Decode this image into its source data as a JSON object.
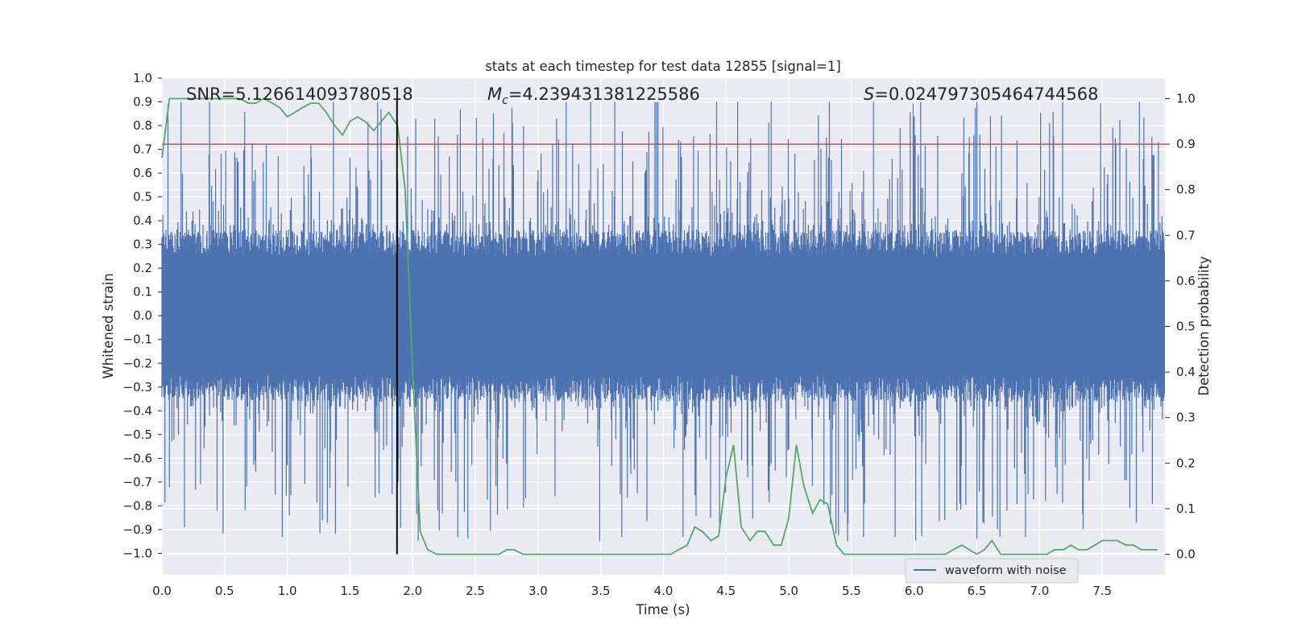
{
  "chart_data": {
    "type": "line",
    "title": "stats at each timestep for test data 12855 [signal=1]",
    "xlabel": "Time (s)",
    "ylabel": "Whitened strain",
    "y2label": "Detection probability",
    "xlim": [
      0.0,
      8.0
    ],
    "ylim": [
      -1.09,
      1.0
    ],
    "y2lim": [
      -0.045,
      1.045
    ],
    "xticks": [
      "0.0",
      "0.5",
      "1.0",
      "1.5",
      "2.0",
      "2.5",
      "3.0",
      "3.5",
      "4.0",
      "4.5",
      "5.0",
      "5.5",
      "6.0",
      "6.5",
      "7.0",
      "7.5"
    ],
    "yticks": [
      "1.0",
      "0.9",
      "0.8",
      "0.7",
      "0.6",
      "0.5",
      "0.4",
      "0.3",
      "0.2",
      "0.1",
      "0.0",
      "−0.1",
      "−0.2",
      "−0.3",
      "−0.4",
      "−0.5",
      "−0.6",
      "−0.7",
      "−0.8",
      "−0.9",
      "−1.0"
    ],
    "y2ticks": [
      "1.0",
      "0.9",
      "0.8",
      "0.7",
      "0.6",
      "0.5",
      "0.4",
      "0.3",
      "0.2",
      "0.1",
      "0.0"
    ],
    "grid": true,
    "annotations": {
      "snr": "SNR=5.126614093780518",
      "mc_symbol": "M",
      "mc_sub": "c",
      "mc_value": "=4.239431381225586",
      "s_symbol": "S",
      "s_value": "=0.024797305464744568"
    },
    "legend": {
      "placement": "lower-right",
      "entries": [
        "waveform with noise"
      ]
    },
    "merger_time": 1.875,
    "threshold_probability": 0.9,
    "series": [
      {
        "name": "waveform with noise",
        "axis": "left",
        "color": "#4c72b0",
        "description_values": {
          "typical_amplitude": 0.33,
          "peak_amplitude": 0.9,
          "duration_s": 8.0
        }
      },
      {
        "name": "",
        "axis": "right",
        "color": "#55a868",
        "x": [
          0.0,
          0.06,
          0.12,
          0.19,
          0.25,
          0.31,
          0.38,
          0.44,
          0.5,
          0.56,
          0.62,
          0.69,
          0.75,
          0.81,
          0.88,
          0.94,
          1.0,
          1.06,
          1.12,
          1.19,
          1.25,
          1.31,
          1.38,
          1.44,
          1.5,
          1.56,
          1.62,
          1.69,
          1.75,
          1.81,
          1.88,
          1.94,
          2.0,
          2.06,
          2.12,
          2.19,
          2.25,
          2.31,
          2.38,
          2.44,
          2.5,
          2.56,
          2.62,
          2.69,
          2.75,
          2.81,
          2.88,
          2.94,
          3.0,
          3.06,
          3.12,
          3.19,
          3.25,
          3.5,
          3.75,
          3.88,
          4.0,
          4.06,
          4.12,
          4.19,
          4.25,
          4.31,
          4.38,
          4.44,
          4.5,
          4.56,
          4.62,
          4.69,
          4.75,
          4.81,
          4.88,
          4.94,
          5.0,
          5.06,
          5.12,
          5.19,
          5.25,
          5.31,
          5.38,
          5.44,
          5.5,
          5.56,
          5.62,
          5.75,
          6.0,
          6.25,
          6.31,
          6.38,
          6.44,
          6.5,
          6.56,
          6.62,
          6.69,
          6.75,
          6.81,
          6.88,
          6.94,
          7.0,
          7.06,
          7.12,
          7.19,
          7.25,
          7.31,
          7.38,
          7.44,
          7.5,
          7.56,
          7.62,
          7.69,
          7.75,
          7.81,
          7.88,
          7.94
        ],
        "values": [
          0.87,
          1.0,
          1.0,
          1.0,
          1.0,
          1.0,
          1.0,
          1.0,
          1.0,
          1.0,
          1.0,
          0.99,
          0.99,
          1.0,
          0.99,
          0.98,
          0.96,
          0.97,
          0.98,
          0.99,
          0.99,
          0.97,
          0.94,
          0.92,
          0.95,
          0.96,
          0.95,
          0.93,
          0.95,
          0.97,
          0.94,
          0.8,
          0.4,
          0.05,
          0.01,
          0.0,
          0.0,
          0.0,
          0.0,
          0.0,
          0.0,
          0.0,
          0.0,
          0.0,
          0.01,
          0.01,
          0.0,
          0.0,
          0.0,
          0.0,
          0.0,
          0.0,
          0.0,
          0.0,
          0.0,
          0.0,
          0.0,
          0.0,
          0.01,
          0.02,
          0.06,
          0.05,
          0.03,
          0.04,
          0.17,
          0.24,
          0.06,
          0.03,
          0.05,
          0.05,
          0.02,
          0.02,
          0.08,
          0.24,
          0.15,
          0.09,
          0.12,
          0.11,
          0.02,
          0.0,
          0.0,
          0.0,
          0.0,
          0.0,
          0.0,
          0.0,
          0.01,
          0.02,
          0.01,
          0.0,
          0.01,
          0.03,
          0.0,
          0.0,
          0.0,
          0.0,
          0.0,
          0.0,
          0.0,
          0.01,
          0.01,
          0.02,
          0.01,
          0.01,
          0.02,
          0.03,
          0.03,
          0.03,
          0.02,
          0.02,
          0.01,
          0.01,
          0.01
        ]
      }
    ]
  }
}
